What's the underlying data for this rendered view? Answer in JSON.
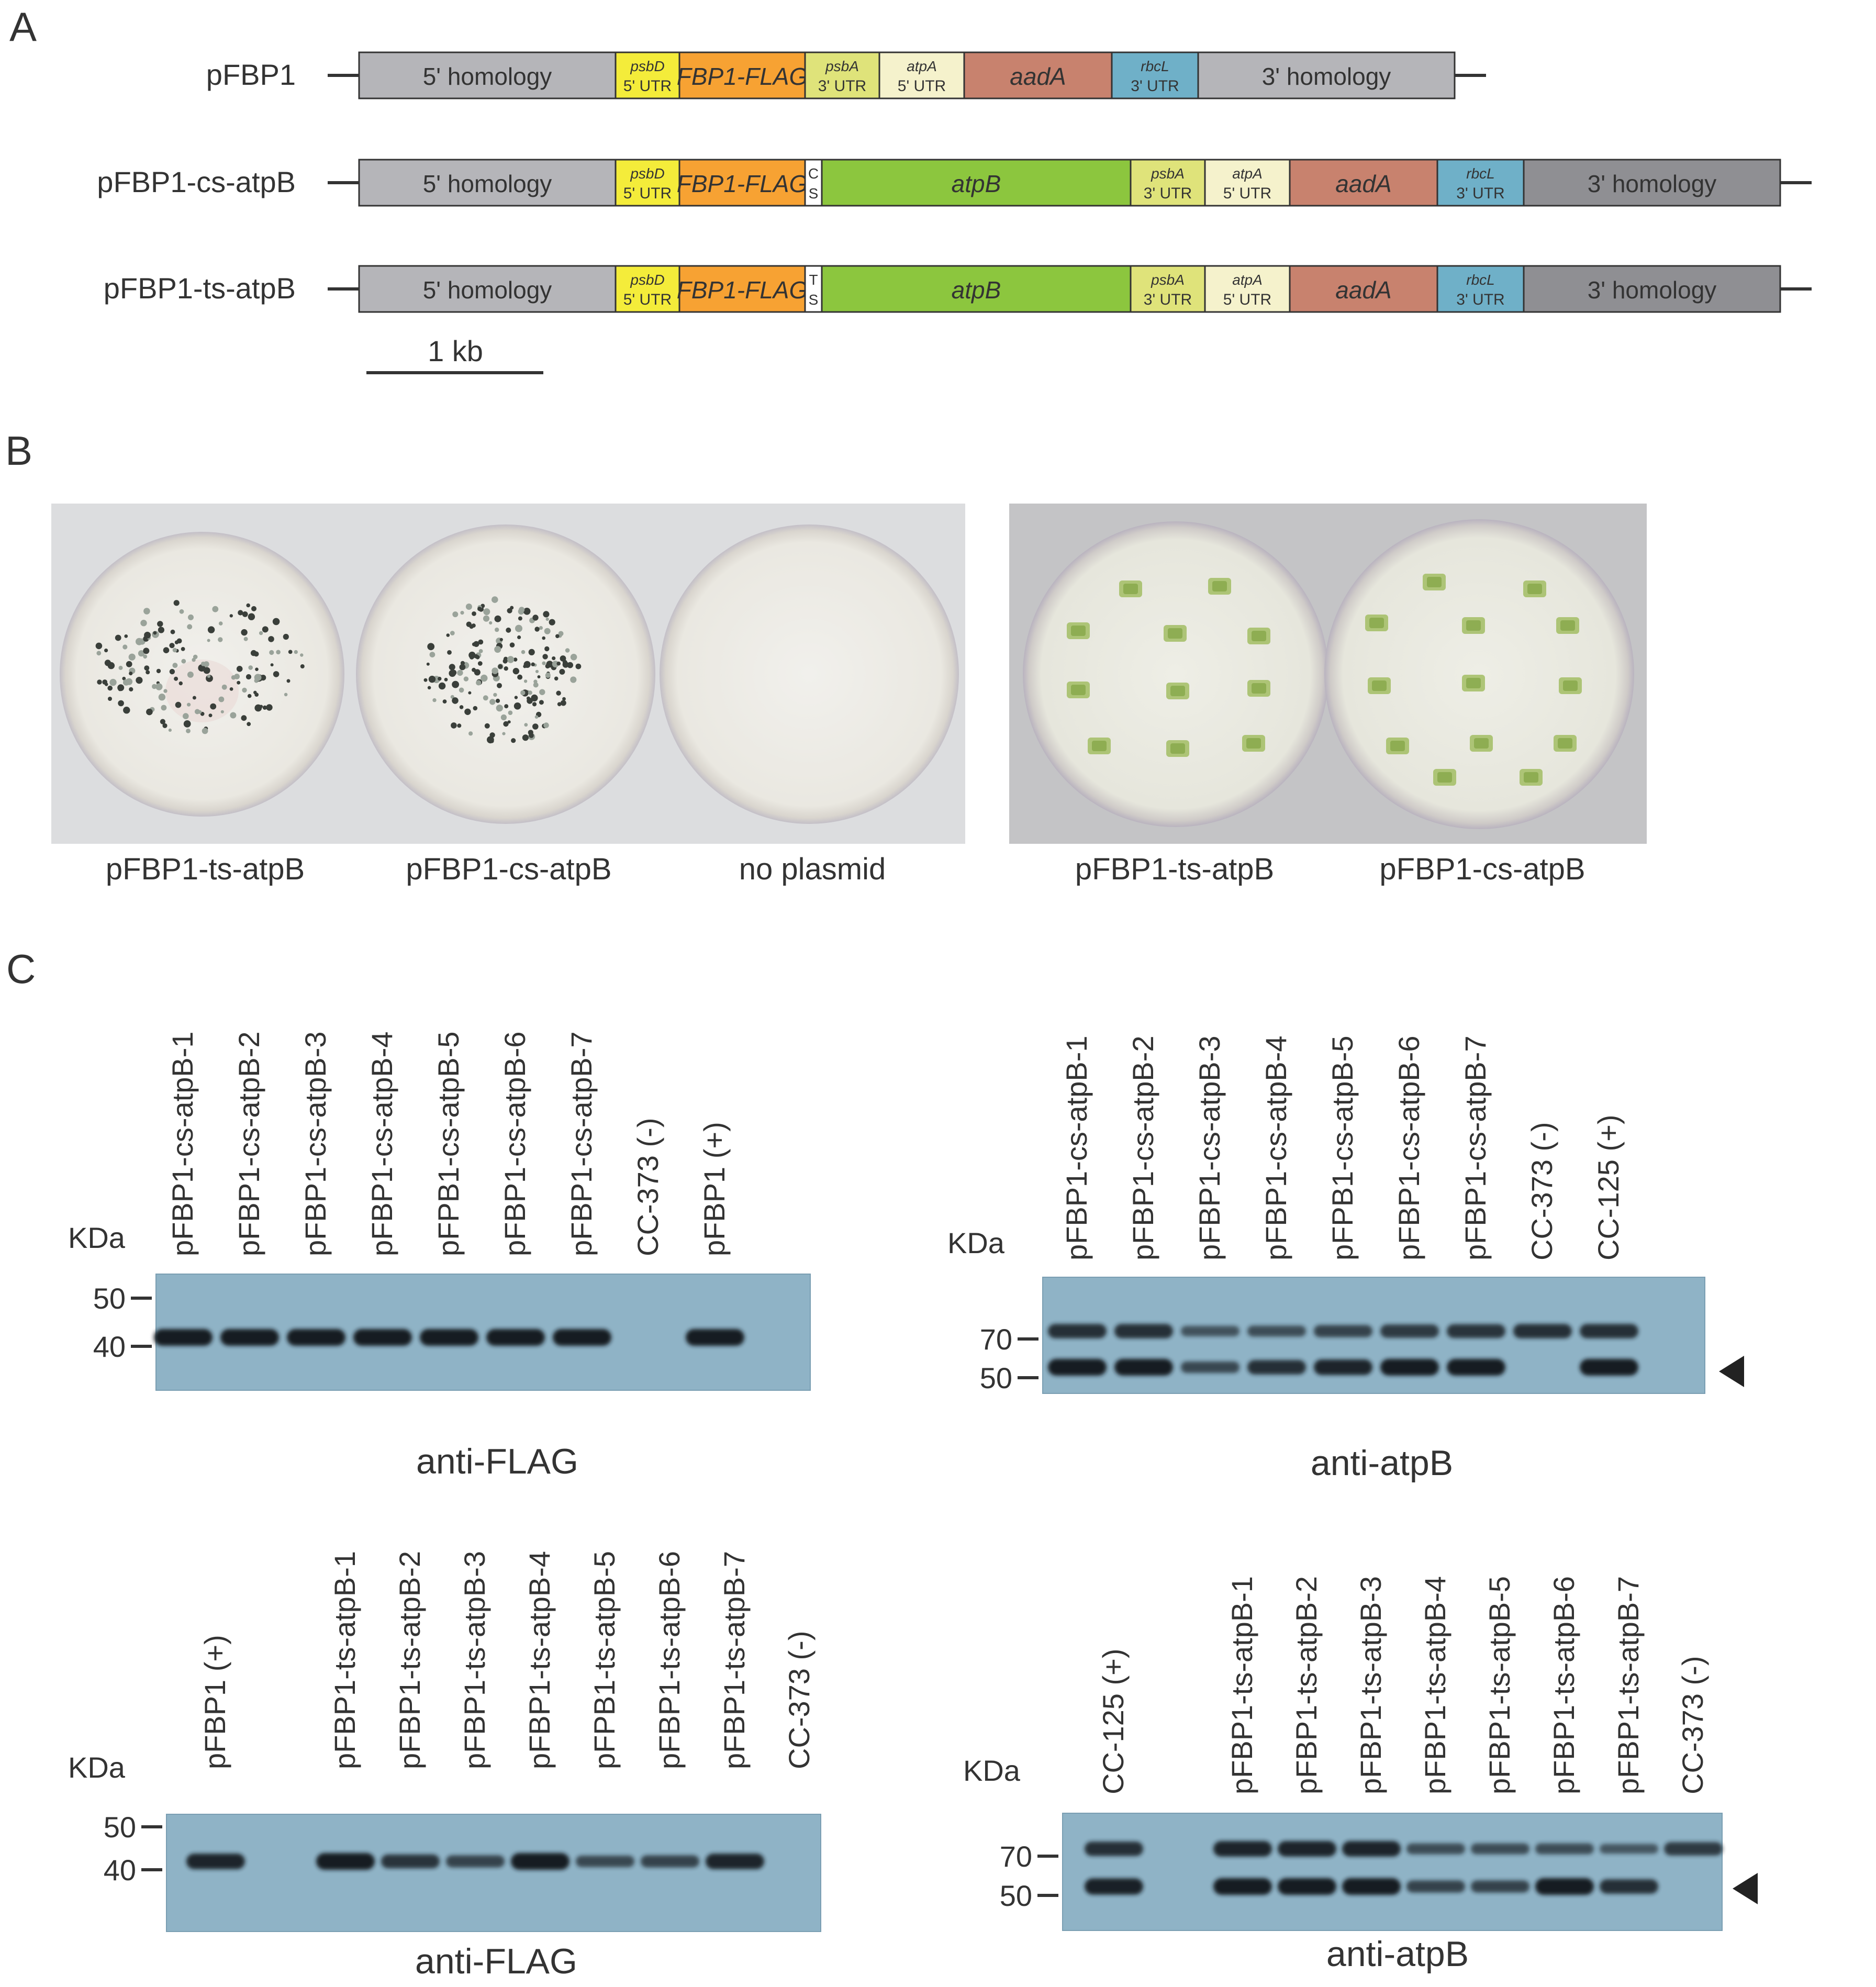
{
  "panels": {
    "a": "A",
    "b": "B",
    "c": "C"
  },
  "constructs": [
    {
      "label": "pFBP1",
      "segments": [
        {
          "type": "homology5",
          "t1": "5' homology"
        },
        {
          "type": "psbd",
          "t1": "psbD",
          "t2": "5' UTR"
        },
        {
          "type": "fbp",
          "t1": "FBP1-FLAG"
        },
        {
          "type": "psba",
          "t1": "psbA",
          "t2": "3' UTR"
        },
        {
          "type": "atpa",
          "t1": "atpA",
          "t2": "5' UTR"
        },
        {
          "type": "aada",
          "t1": "aadA"
        },
        {
          "type": "rbcl",
          "t1": "rbcL",
          "t2": "3' UTR"
        },
        {
          "type": "homology3light",
          "t1": "3' homology"
        }
      ]
    },
    {
      "label": "pFBP1-cs-atpB",
      "segments": [
        {
          "type": "homology5",
          "t1": "5' homology"
        },
        {
          "type": "psbd",
          "t1": "psbD",
          "t2": "5' UTR"
        },
        {
          "type": "fbp",
          "t1": "FBP1-FLAG"
        },
        {
          "type": "site",
          "t1": "C",
          "t2": "S"
        },
        {
          "type": "atpb",
          "t1": "atpB"
        },
        {
          "type": "psba",
          "t1": "psbA",
          "t2": "3' UTR"
        },
        {
          "type": "atpa",
          "t1": "atpA",
          "t2": "5' UTR"
        },
        {
          "type": "aada",
          "t1": "aadA"
        },
        {
          "type": "rbcl",
          "t1": "rbcL",
          "t2": "3' UTR"
        },
        {
          "type": "homology3",
          "t1": "3' homology"
        }
      ]
    },
    {
      "label": "pFBP1-ts-atpB",
      "segments": [
        {
          "type": "homology5",
          "t1": "5' homology"
        },
        {
          "type": "psbd",
          "t1": "psbD",
          "t2": "5' UTR"
        },
        {
          "type": "fbp",
          "t1": "FBP1-FLAG"
        },
        {
          "type": "site",
          "t1": "T",
          "t2": "S"
        },
        {
          "type": "atpb",
          "t1": "atpB"
        },
        {
          "type": "psba",
          "t1": "psbA",
          "t2": "3' UTR"
        },
        {
          "type": "atpa",
          "t1": "atpA",
          "t2": "5' UTR"
        },
        {
          "type": "aada",
          "t1": "aadA"
        },
        {
          "type": "rbcl",
          "t1": "rbcL",
          "t2": "3' UTR"
        },
        {
          "type": "homology3",
          "t1": "3' homology"
        }
      ]
    }
  ],
  "scale_bar": "1 kb",
  "segment_colors": {
    "homology5": "#b5b5b9",
    "homology3light": "#b5b5b9",
    "homology3": "#8f8f93",
    "psbd": "#f4ec3a",
    "fbp": "#f7a233",
    "psba": "#dfe37a",
    "atpa": "#f5f2cc",
    "aada": "#c8826e",
    "rbcl": "#6fb0c8",
    "atpb": "#8cc63e",
    "site": "#ffffff"
  },
  "plates_left": {
    "labels": [
      "pFBP1-ts-atpB",
      "pFBP1-cs-atpB",
      "no plasmid"
    ]
  },
  "plates_right": {
    "labels": [
      "pFBP1-ts-atpB",
      "pFBP1-cs-atpB"
    ]
  },
  "blot_unit": "KDa",
  "blots": [
    {
      "caption": "anti-FLAG",
      "lanes": [
        "pFBP1-cs-atpB-1",
        "pFBP1-cs-atpB-2",
        "pFBP1-cs-atpB-3",
        "pFBP1-cs-atpB-4",
        "pFPB1-cs-atpB-5",
        "pFBP1-cs-atpB-6",
        "pFBP1-cs-atpB-7",
        "CC-373 (-)",
        "pFBP1 (+)"
      ],
      "markers": [
        "50",
        "40"
      ],
      "band_intensity": [
        [
          1,
          1,
          1,
          1,
          1,
          1,
          1,
          0,
          1
        ]
      ]
    },
    {
      "caption": "anti-atpB",
      "lanes": [
        "pFBP1-cs-atpB-1",
        "pFBP1-cs-atpB-2",
        "pFBP1-cs-atpB-3",
        "pFBP1-cs-atpB-4",
        "pFPB1-cs-atpB-5",
        "pFBP1-cs-atpB-6",
        "pFBP1-cs-atpB-7",
        "CC-373 (-)",
        "CC-125 (+)"
      ],
      "markers": [
        "70",
        "50"
      ],
      "band_intensity": [
        [
          0.8,
          0.8,
          0.45,
          0.5,
          0.6,
          0.7,
          0.75,
          0.8,
          0.8
        ],
        [
          1,
          1,
          0.55,
          0.8,
          0.9,
          1,
          1,
          0,
          1
        ]
      ]
    },
    {
      "caption": "anti-FLAG",
      "lanes": [
        "pFBP1 (+)",
        "",
        "pFBP1-ts-atpB-1",
        "pFBP1-ts-atpB-2",
        "pFBP1-ts-atpB-3",
        "pFBP1-ts-atpB-4",
        "pFPB1-ts-atpB-5",
        "pFBP1-ts-atpB-6",
        "pFBP1-ts-atpB-7",
        "CC-373 (-)"
      ],
      "markers": [
        "50",
        "40"
      ],
      "band_intensity": [
        [
          0.9,
          0,
          1,
          0.75,
          0.6,
          1,
          0.55,
          0.6,
          0.9,
          0
        ]
      ]
    },
    {
      "caption": "anti-atpB",
      "lanes": [
        "CC-125 (+)",
        "",
        "pFBP1-ts-atpB-1",
        "pFBP1-ts-atpB-2",
        "pFBP1-ts-atpB-3",
        "pFBP1-ts-atpB-4",
        "pFBP1-ts-atpB-5",
        "pFBP1-ts-atpB-6",
        "pFBP1-ts-atpB-7",
        "CC-373 (-)"
      ],
      "markers": [
        "70",
        "50"
      ],
      "band_intensity": [
        [
          0.8,
          0,
          0.9,
          0.9,
          0.9,
          0.5,
          0.5,
          0.5,
          0.4,
          0.7
        ],
        [
          0.95,
          0,
          1,
          1,
          1,
          0.6,
          0.6,
          1,
          0.8,
          0
        ]
      ]
    }
  ]
}
